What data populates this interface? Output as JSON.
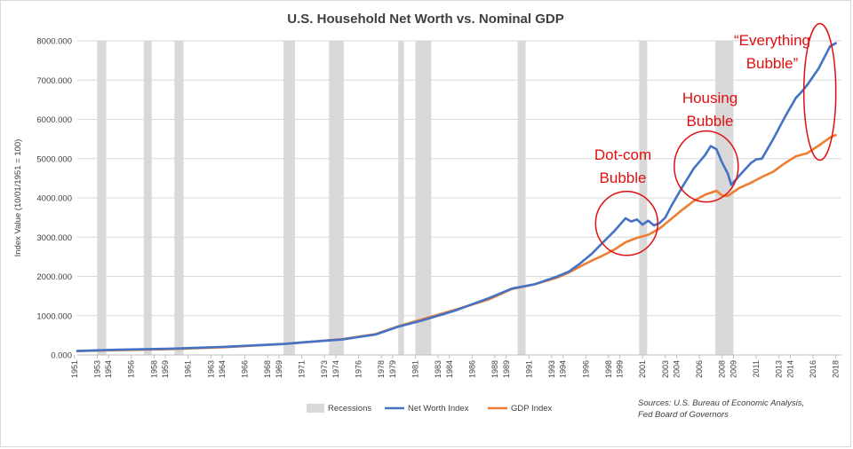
{
  "chart_data": {
    "type": "line",
    "title": "U.S. Household Net Worth vs. Nominal GDP",
    "ylabel": "Index Value (10/01/1951 = 100)",
    "xlabel": "",
    "ylim": [
      0,
      8000
    ],
    "yticks": [
      "0.000",
      "1000.000",
      "2000.000",
      "3000.000",
      "4000.000",
      "5000.000",
      "6000.000",
      "7000.000",
      "8000.000"
    ],
    "xlim": [
      1951.75,
      2019.0
    ],
    "xtick_years": [
      1951,
      1953,
      1954,
      1956,
      1958,
      1959,
      1961,
      1963,
      1964,
      1966,
      1968,
      1969,
      1971,
      1973,
      1974,
      1976,
      1978,
      1979,
      1981,
      1983,
      1984,
      1986,
      1988,
      1989,
      1991,
      1993,
      1994,
      1996,
      1998,
      1999,
      2001,
      2003,
      2004,
      2006,
      2008,
      2009,
      2011,
      2013,
      2014,
      2016,
      2018
    ],
    "grid": "horizontal",
    "legend_placement": "bottom",
    "colors": {
      "net_worth": "#4472c4",
      "gdp": "#ed7d31",
      "recession": "#d9d9d9",
      "annotation": "#e01010",
      "gridline": "#d9d9d9"
    },
    "recessions": [
      [
        1953.5,
        1954.3
      ],
      [
        1957.6,
        1958.3
      ],
      [
        1960.3,
        1961.1
      ],
      [
        1969.9,
        1970.9
      ],
      [
        1973.9,
        1975.2
      ],
      [
        1980.0,
        1980.5
      ],
      [
        1981.5,
        1982.9
      ],
      [
        1990.5,
        1991.2
      ],
      [
        2001.2,
        2001.9
      ],
      [
        2007.9,
        2009.5
      ]
    ],
    "series": [
      {
        "name": "Net Worth Index",
        "x": [
          1951.75,
          1955,
          1960,
          1965,
          1970,
          1972,
          1975,
          1978,
          1980,
          1982,
          1985,
          1988,
          1990,
          1992,
          1994,
          1995,
          1996,
          1997,
          1998,
          1999,
          2000,
          2000.5,
          2001,
          2001.5,
          2002,
          2002.5,
          2003,
          2003.5,
          2004,
          2005,
          2006,
          2007,
          2007.5,
          2008,
          2008.5,
          2009,
          2009.3,
          2010,
          2011,
          2011.5,
          2012,
          2013,
          2014,
          2015,
          2015.5,
          2016,
          2017,
          2018,
          2018.5
        ],
        "values": [
          100,
          130,
          160,
          210,
          280,
          330,
          390,
          520,
          720,
          870,
          1130,
          1450,
          1690,
          1800,
          2000,
          2120,
          2330,
          2570,
          2860,
          3150,
          3480,
          3400,
          3450,
          3320,
          3420,
          3300,
          3360,
          3500,
          3780,
          4280,
          4750,
          5090,
          5320,
          5240,
          4900,
          4620,
          4330,
          4560,
          4880,
          4980,
          5000,
          5500,
          6050,
          6550,
          6700,
          6880,
          7300,
          7860,
          7940
        ]
      },
      {
        "name": "GDP Index",
        "x": [
          1951.75,
          1955,
          1960,
          1965,
          1970,
          1972,
          1975,
          1978,
          1980,
          1982,
          1985,
          1988,
          1990,
          1992,
          1994,
          1995,
          1996,
          1997,
          1998,
          1999,
          2000,
          2001,
          2002,
          2003,
          2004,
          2005,
          2006,
          2007,
          2008,
          2008.5,
          2009,
          2010,
          2011,
          2012,
          2013,
          2014,
          2015,
          2016,
          2017,
          2018,
          2018.5
        ],
        "values": [
          100,
          120,
          150,
          200,
          280,
          330,
          400,
          530,
          730,
          900,
          1150,
          1420,
          1680,
          1800,
          1970,
          2100,
          2250,
          2400,
          2530,
          2680,
          2870,
          2980,
          3060,
          3220,
          3460,
          3700,
          3920,
          4080,
          4180,
          4060,
          4050,
          4250,
          4380,
          4530,
          4670,
          4880,
          5060,
          5140,
          5330,
          5540,
          5600
        ]
      }
    ],
    "legend": [
      {
        "key": "recession",
        "label": "Recessions"
      },
      {
        "key": "net_worth",
        "label": "Net Worth Index"
      },
      {
        "key": "gdp",
        "label": "GDP Index"
      }
    ],
    "annotations": [
      {
        "lines": [
          "Dot-com",
          "Bubble"
        ],
        "center_x": 2000.1,
        "center_y": 3350
      },
      {
        "lines": [
          "Housing",
          "Bubble"
        ],
        "center_x": 2007.1,
        "center_y": 4800
      },
      {
        "lines": [
          "“Everything",
          "Bubble”"
        ],
        "center_x": 2017.1,
        "center_y": 6700
      }
    ],
    "source": [
      "Sources: U.S. Bureau of Economic Analysis,",
      "Fed Board of Governors"
    ]
  }
}
